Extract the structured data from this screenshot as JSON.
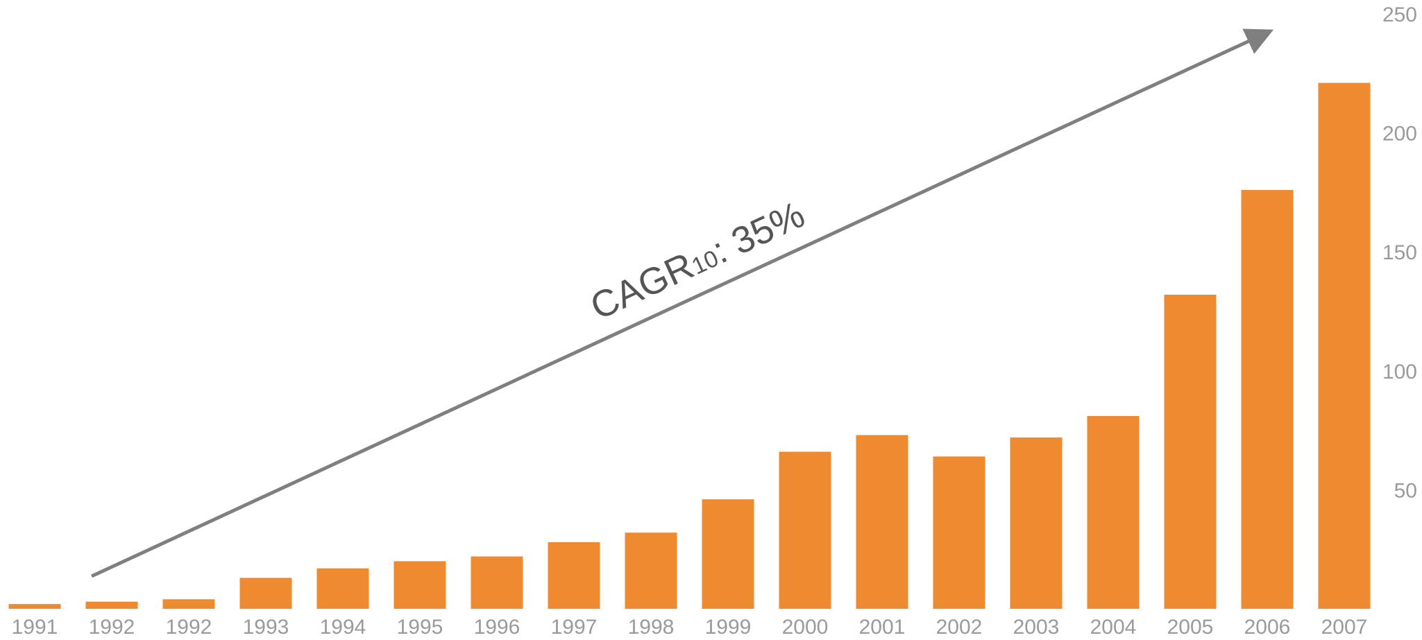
{
  "chart_data": {
    "type": "bar",
    "title": "",
    "xlabel": "",
    "ylabel": "",
    "categories": [
      "1991",
      "1992",
      "1992",
      "1993",
      "1994",
      "1995",
      "1996",
      "1997",
      "1998",
      "1999",
      "2000",
      "2001",
      "2002",
      "2003",
      "2004",
      "2005",
      "2006",
      "2007"
    ],
    "values": [
      2,
      3,
      4,
      13,
      17,
      20,
      22,
      28,
      32,
      46,
      66,
      73,
      64,
      72,
      81,
      132,
      176,
      221
    ],
    "ylim": [
      0,
      250
    ],
    "yticks": [
      50,
      100,
      150,
      200,
      250
    ],
    "y_axis_side": "right",
    "grid": false,
    "bar_color": "#EE8A2F",
    "annotation": {
      "text": "CAGR",
      "subscript": "10",
      "suffix": ": 35%",
      "arrow_color": "#7F7F7F"
    }
  }
}
